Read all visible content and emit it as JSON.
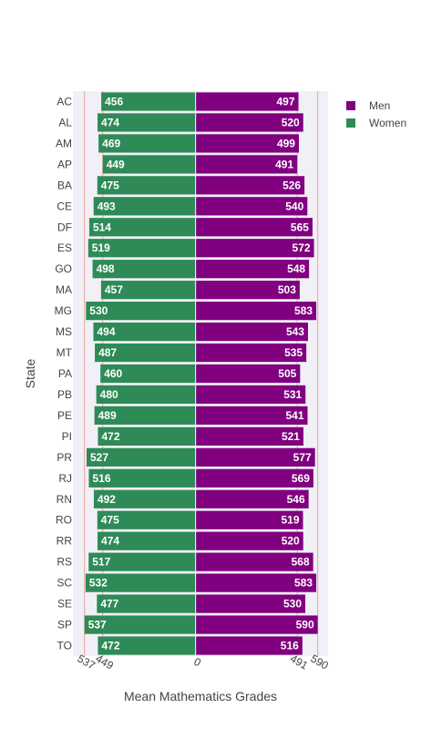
{
  "chart_data": {
    "type": "bar",
    "orientation": "horizontal",
    "barmode": "relative",
    "xlabel": "Mean Mathematics Grades",
    "ylabel": "State",
    "xlim": [
      -593,
      640
    ],
    "x_ticks": [
      -537,
      -449,
      0,
      491,
      590
    ],
    "x_tick_labels": [
      "537",
      "449",
      "0",
      "491",
      "590"
    ],
    "reference_lines": [
      -537,
      -449,
      491,
      590
    ],
    "grid": false,
    "legend_position": "top-right",
    "categories": [
      "AC",
      "AL",
      "AM",
      "AP",
      "BA",
      "CE",
      "DF",
      "ES",
      "GO",
      "MA",
      "MG",
      "MS",
      "MT",
      "PA",
      "PB",
      "PE",
      "PI",
      "PR",
      "RJ",
      "RN",
      "RO",
      "RR",
      "RS",
      "SC",
      "SE",
      "SP",
      "TO"
    ],
    "series": [
      {
        "name": "Men",
        "color": "#800080",
        "values": [
          497,
          520,
          499,
          491,
          526,
          540,
          565,
          572,
          548,
          503,
          583,
          543,
          535,
          505,
          531,
          541,
          521,
          577,
          569,
          546,
          519,
          520,
          568,
          583,
          530,
          590,
          516
        ]
      },
      {
        "name": "Women",
        "color": "#2e8b57",
        "values": [
          456,
          474,
          469,
          449,
          475,
          493,
          514,
          519,
          498,
          457,
          530,
          494,
          487,
          460,
          480,
          489,
          472,
          527,
          516,
          492,
          475,
          474,
          517,
          532,
          477,
          537,
          472
        ]
      }
    ]
  }
}
